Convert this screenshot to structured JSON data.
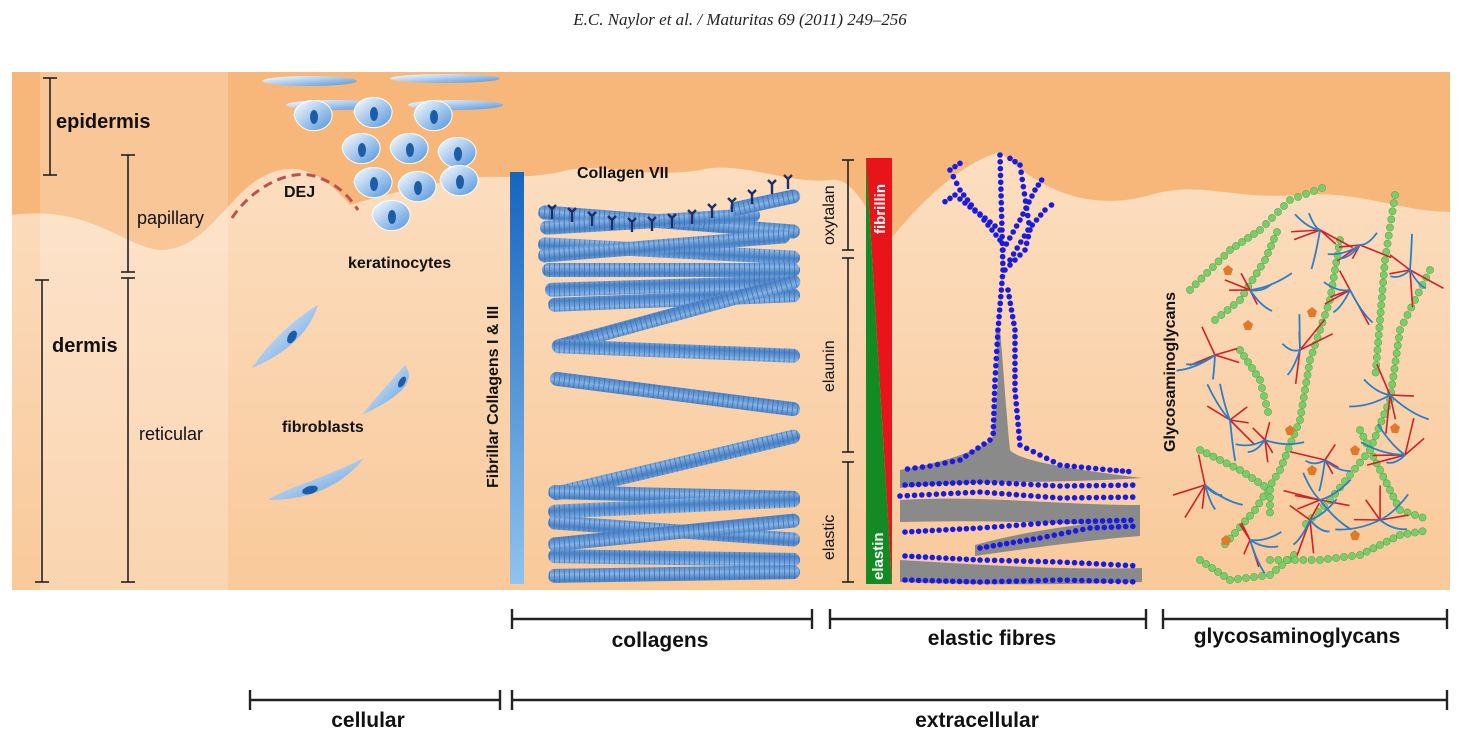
{
  "header": "E.C. Naylor et al. / Maturitas 69 (2011) 249–256",
  "layers": {
    "epidermis": "epidermis",
    "papillary": "papillary",
    "dermis": "dermis",
    "reticular": "reticular"
  },
  "cell_labels": {
    "dej": "DEJ",
    "keratinocytes": "keratinocytes",
    "fibroblasts": "fibroblasts"
  },
  "collagen_labels": {
    "collagen_vii": "Collagen VII",
    "fibrillar": "Fibrillar Collagens I & III"
  },
  "elastic_labels": {
    "oxytalan": "oxytalan",
    "elaunin": "elaunin",
    "elastic": "elastic",
    "fibrillin": "fibrillin",
    "elastin": "elastin"
  },
  "gag_label": "Glycosaminoglycans",
  "brackets": {
    "collagens": "collagens",
    "elastic_fibres": "elastic fibres",
    "glycosaminoglycans": "glycosaminoglycans",
    "cellular": "cellular",
    "extracellular": "extracellular"
  },
  "colors": {
    "epidermis": "#f5b57a",
    "dermis": "#fbd9b8",
    "collagen": "#5b8fd1",
    "fibrillin": "#e8141a",
    "elastin": "#138a23",
    "elastic_dots": "#1a1ae0",
    "elastin_core": "#8a8a8a",
    "gag_green": "#7ccc6a",
    "gag_red": "#d0202a",
    "gag_blue": "#2a7fc8"
  }
}
